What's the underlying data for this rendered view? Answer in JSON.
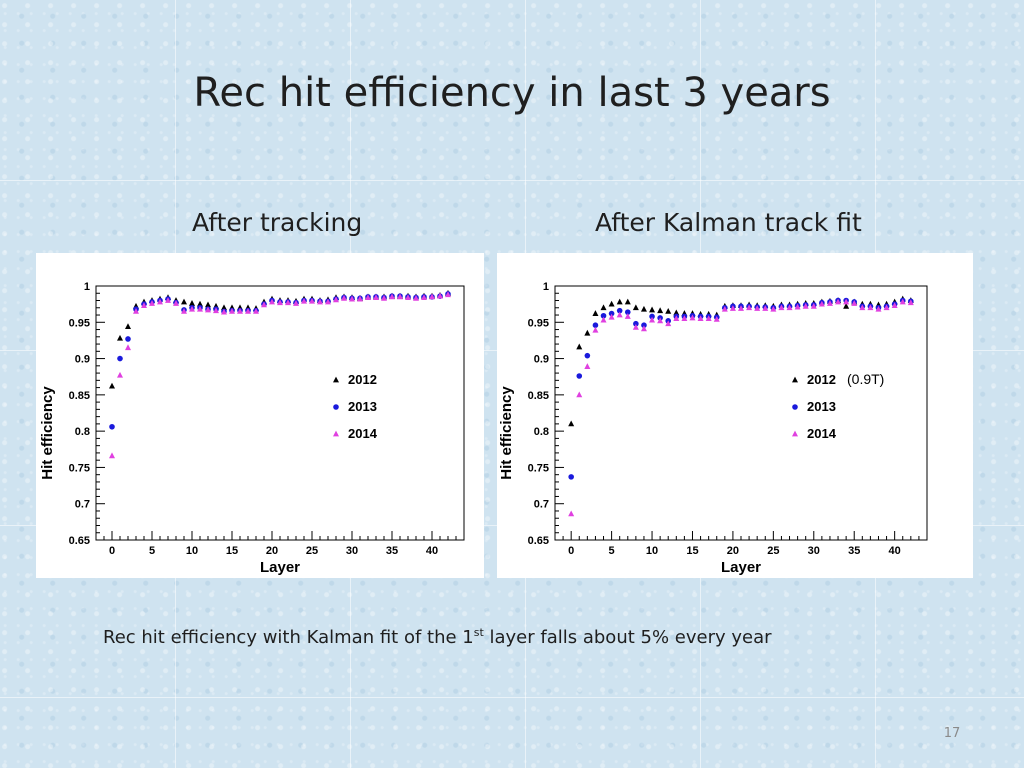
{
  "slide": {
    "title": "Rec hit efficiency in last 3 years",
    "left_heading": "After tracking",
    "right_heading": "After Kalman track fit",
    "caption_pre": "Rec hit efficiency  with Kalman fit of the 1",
    "caption_sup": "st",
    "caption_post": " layer falls about 5% every year",
    "page_number": "17"
  },
  "colors": {
    "y2012": "#000000",
    "y2013": "#1a1adc",
    "y2014": "#e040e0"
  },
  "chart_data": [
    {
      "type": "scatter",
      "title": "",
      "xlabel": "Layer",
      "ylabel": "Hit efficiency",
      "xlim": [
        -2,
        44
      ],
      "ylim": [
        0.65,
        1.0
      ],
      "xticks": [
        0,
        5,
        10,
        15,
        20,
        25,
        30,
        35,
        40
      ],
      "yticks": [
        0.65,
        0.7,
        0.75,
        0.8,
        0.85,
        0.9,
        0.95,
        1
      ],
      "ytick_labels": [
        "0.65",
        "0.7",
        "0.75",
        "0.8",
        "0.85",
        "0.9",
        "0.95",
        "1"
      ],
      "legend": "center-right",
      "series": [
        {
          "name": "2012",
          "marker": "triangle",
          "x": [
            0,
            1,
            2,
            3,
            4,
            5,
            6,
            7,
            8,
            9,
            10,
            11,
            12,
            13,
            14,
            15,
            16,
            17,
            18,
            19,
            20,
            21,
            22,
            23,
            24,
            25,
            26,
            27,
            28,
            29,
            30,
            31,
            32,
            33,
            34,
            35,
            36,
            37,
            38,
            39,
            40,
            41,
            42
          ],
          "y": [
            0.862,
            0.928,
            0.944,
            0.972,
            0.978,
            0.98,
            0.982,
            0.984,
            0.98,
            0.978,
            0.976,
            0.975,
            0.974,
            0.972,
            0.97,
            0.97,
            0.97,
            0.97,
            0.969,
            0.978,
            0.982,
            0.98,
            0.98,
            0.979,
            0.982,
            0.982,
            0.98,
            0.981,
            0.984,
            0.985,
            0.984,
            0.983,
            0.985,
            0.985,
            0.985,
            0.986,
            0.986,
            0.986,
            0.985,
            0.986,
            0.986,
            0.987,
            0.99
          ]
        },
        {
          "name": "2013",
          "marker": "circle",
          "x": [
            0,
            1,
            2,
            3,
            4,
            5,
            6,
            7,
            8,
            9,
            10,
            11,
            12,
            13,
            14,
            15,
            16,
            17,
            18,
            19,
            20,
            21,
            22,
            23,
            24,
            25,
            26,
            27,
            28,
            29,
            30,
            31,
            32,
            33,
            34,
            35,
            36,
            37,
            38,
            39,
            40,
            41,
            42
          ],
          "y": [
            0.806,
            0.9,
            0.927,
            0.968,
            0.975,
            0.978,
            0.98,
            0.982,
            0.977,
            0.967,
            0.97,
            0.97,
            0.968,
            0.968,
            0.965,
            0.966,
            0.966,
            0.966,
            0.966,
            0.975,
            0.98,
            0.978,
            0.978,
            0.977,
            0.98,
            0.98,
            0.979,
            0.979,
            0.982,
            0.984,
            0.983,
            0.983,
            0.985,
            0.985,
            0.984,
            0.986,
            0.986,
            0.985,
            0.984,
            0.985,
            0.985,
            0.986,
            0.989
          ]
        },
        {
          "name": "2014",
          "marker": "triangle",
          "x": [
            0,
            1,
            2,
            3,
            4,
            5,
            6,
            7,
            8,
            9,
            10,
            11,
            12,
            13,
            14,
            15,
            16,
            17,
            18,
            19,
            20,
            21,
            22,
            23,
            24,
            25,
            26,
            27,
            28,
            29,
            30,
            31,
            32,
            33,
            34,
            35,
            36,
            37,
            38,
            39,
            40,
            41,
            42
          ],
          "y": [
            0.766,
            0.877,
            0.915,
            0.965,
            0.973,
            0.976,
            0.978,
            0.98,
            0.976,
            0.965,
            0.968,
            0.968,
            0.967,
            0.966,
            0.964,
            0.965,
            0.965,
            0.965,
            0.965,
            0.974,
            0.978,
            0.977,
            0.977,
            0.976,
            0.979,
            0.979,
            0.978,
            0.978,
            0.981,
            0.983,
            0.982,
            0.982,
            0.984,
            0.984,
            0.983,
            0.985,
            0.985,
            0.984,
            0.983,
            0.984,
            0.985,
            0.986,
            0.988
          ]
        }
      ]
    },
    {
      "type": "scatter",
      "title": "",
      "xlabel": "Layer",
      "ylabel": "Hit efficiency",
      "xlim": [
        -2,
        44
      ],
      "ylim": [
        0.65,
        1.0
      ],
      "xticks": [
        0,
        5,
        10,
        15,
        20,
        25,
        30,
        35,
        40
      ],
      "yticks": [
        0.65,
        0.7,
        0.75,
        0.8,
        0.85,
        0.9,
        0.95,
        1
      ],
      "ytick_labels": [
        "0.65",
        "0.7",
        "0.75",
        "0.8",
        "0.85",
        "0.9",
        "0.95",
        "1"
      ],
      "legend": "center-right",
      "legend_note": "(0.9T)",
      "series": [
        {
          "name": "2012",
          "marker": "triangle",
          "x": [
            0,
            1,
            2,
            3,
            4,
            5,
            6,
            7,
            8,
            9,
            10,
            11,
            12,
            13,
            14,
            15,
            16,
            17,
            18,
            19,
            20,
            21,
            22,
            23,
            24,
            25,
            26,
            27,
            28,
            29,
            30,
            31,
            32,
            33,
            34,
            35,
            36,
            37,
            38,
            39,
            40,
            41,
            42
          ],
          "y": [
            0.81,
            0.916,
            0.935,
            0.962,
            0.97,
            0.975,
            0.978,
            0.978,
            0.97,
            0.968,
            0.967,
            0.966,
            0.965,
            0.963,
            0.962,
            0.962,
            0.961,
            0.961,
            0.96,
            0.972,
            0.973,
            0.973,
            0.974,
            0.973,
            0.973,
            0.972,
            0.974,
            0.974,
            0.975,
            0.976,
            0.976,
            0.978,
            0.979,
            0.98,
            0.972,
            0.978,
            0.975,
            0.975,
            0.974,
            0.975,
            0.978,
            0.982,
            0.98
          ]
        },
        {
          "name": "2013",
          "marker": "circle",
          "x": [
            0,
            1,
            2,
            3,
            4,
            5,
            6,
            7,
            8,
            9,
            10,
            11,
            12,
            13,
            14,
            15,
            16,
            17,
            18,
            19,
            20,
            21,
            22,
            23,
            24,
            25,
            26,
            27,
            28,
            29,
            30,
            31,
            32,
            33,
            34,
            35,
            36,
            37,
            38,
            39,
            40,
            41,
            42
          ],
          "y": [
            0.737,
            0.876,
            0.904,
            0.946,
            0.959,
            0.962,
            0.966,
            0.964,
            0.948,
            0.946,
            0.958,
            0.956,
            0.952,
            0.958,
            0.958,
            0.959,
            0.958,
            0.958,
            0.957,
            0.97,
            0.972,
            0.972,
            0.972,
            0.971,
            0.971,
            0.97,
            0.972,
            0.972,
            0.973,
            0.974,
            0.974,
            0.977,
            0.978,
            0.98,
            0.98,
            0.978,
            0.972,
            0.972,
            0.97,
            0.972,
            0.975,
            0.98,
            0.979
          ]
        },
        {
          "name": "2014",
          "marker": "triangle",
          "x": [
            0,
            1,
            2,
            3,
            4,
            5,
            6,
            7,
            8,
            9,
            10,
            11,
            12,
            13,
            14,
            15,
            16,
            17,
            18,
            19,
            20,
            21,
            22,
            23,
            24,
            25,
            26,
            27,
            28,
            29,
            30,
            31,
            32,
            33,
            34,
            35,
            36,
            37,
            38,
            39,
            40,
            41,
            42
          ],
          "y": [
            0.686,
            0.85,
            0.889,
            0.939,
            0.953,
            0.957,
            0.96,
            0.958,
            0.943,
            0.941,
            0.953,
            0.952,
            0.948,
            0.955,
            0.955,
            0.956,
            0.955,
            0.955,
            0.954,
            0.968,
            0.969,
            0.969,
            0.97,
            0.969,
            0.969,
            0.968,
            0.97,
            0.97,
            0.971,
            0.972,
            0.972,
            0.975,
            0.976,
            0.978,
            0.978,
            0.976,
            0.97,
            0.97,
            0.968,
            0.97,
            0.973,
            0.978,
            0.977
          ]
        }
      ]
    }
  ]
}
